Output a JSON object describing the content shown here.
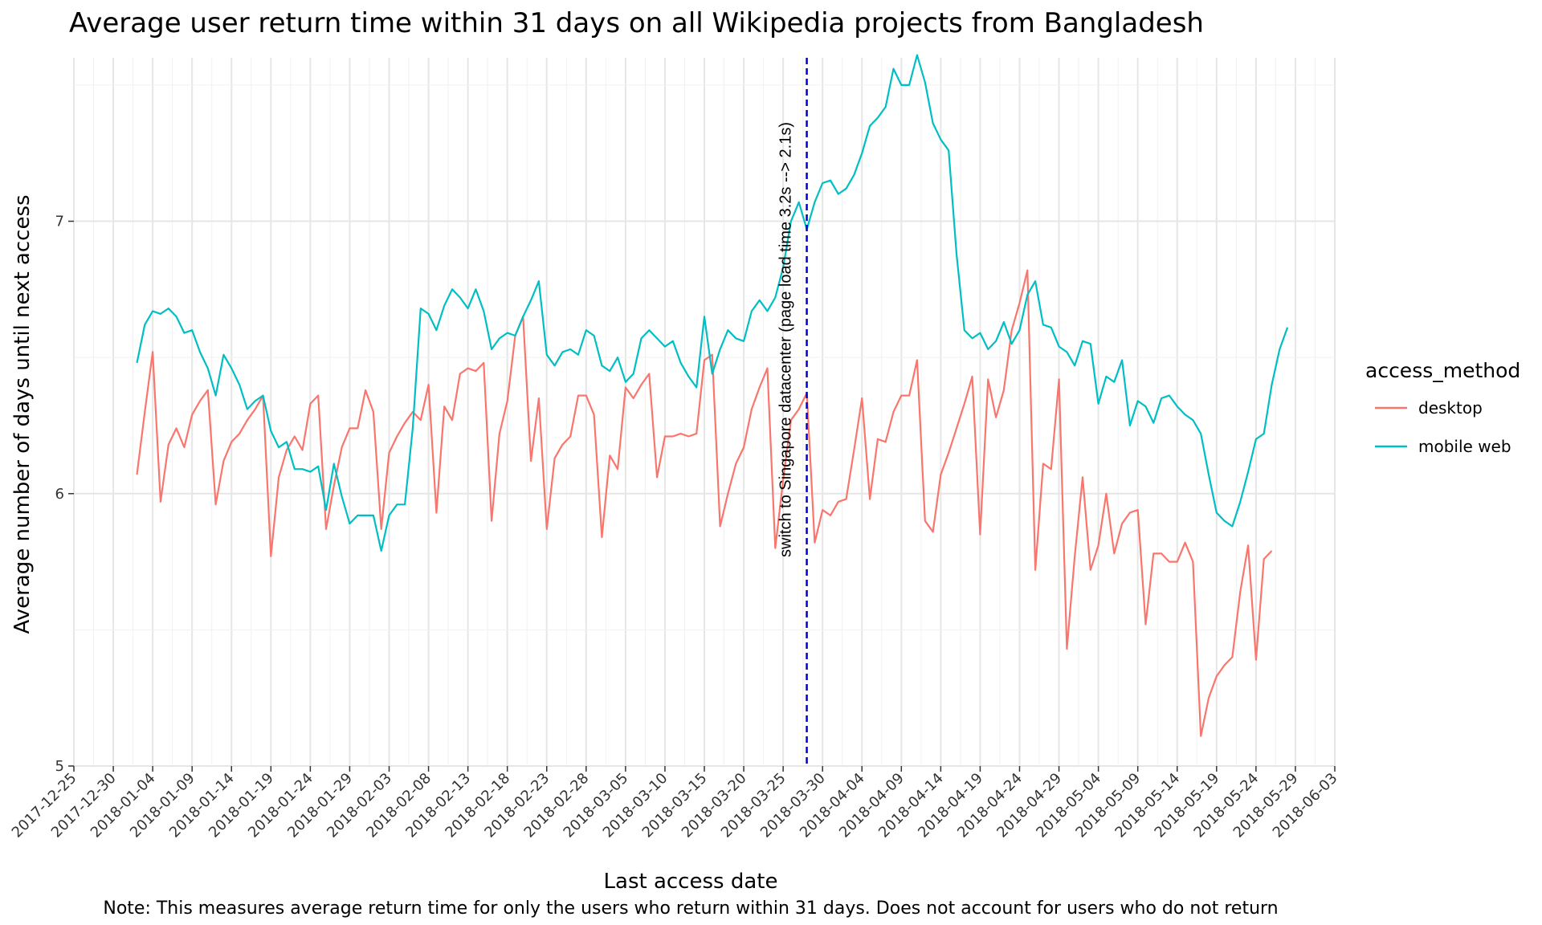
{
  "chart_data": {
    "type": "line",
    "title": "Average user return time within 31 days on all Wikipedia projects from Bangladesh",
    "xlabel": "Last access date",
    "ylabel": "Average number of days until next access",
    "caption": "Note: This measures average return time for only the users who return within 31 days. Does not account for users who do not return",
    "x_start": "2018-01-02",
    "xlim": [
      "2017-12-25",
      "2018-06-03"
    ],
    "ylim": [
      5,
      7.6
    ],
    "x_ticks": [
      "2017-12-25",
      "2017-12-30",
      "2018-01-04",
      "2018-01-09",
      "2018-01-14",
      "2018-01-19",
      "2018-01-24",
      "2018-01-29",
      "2018-02-03",
      "2018-02-08",
      "2018-02-13",
      "2018-02-18",
      "2018-02-23",
      "2018-02-28",
      "2018-03-05",
      "2018-03-10",
      "2018-03-15",
      "2018-03-20",
      "2018-03-25",
      "2018-03-30",
      "2018-04-04",
      "2018-04-09",
      "2018-04-14",
      "2018-04-19",
      "2018-04-24",
      "2018-04-29",
      "2018-05-04",
      "2018-05-09",
      "2018-05-14",
      "2018-05-19",
      "2018-05-24",
      "2018-05-29",
      "2018-06-03"
    ],
    "y_ticks": [
      "5",
      "6",
      "7"
    ],
    "y_tick_values": [
      5,
      6,
      7
    ],
    "grid": true,
    "legend": {
      "title": "access_method",
      "position": "right",
      "entries": [
        {
          "label": "desktop",
          "color": "#F8766D"
        },
        {
          "label": "mobile web",
          "color": "#00BFC4"
        }
      ]
    },
    "annotation": {
      "date": "2018-03-28",
      "text": "switch to Singapore datacenter (page load time 3.2s --> 2.1s)",
      "line_color": "#0000CC"
    },
    "series": [
      {
        "name": "desktop",
        "color": "#F8766D",
        "values": [
          6.07,
          6.3,
          6.52,
          5.97,
          6.18,
          6.24,
          6.17,
          6.29,
          6.34,
          6.38,
          5.96,
          6.12,
          6.19,
          6.22,
          6.27,
          6.31,
          6.36,
          5.77,
          6.06,
          6.16,
          6.21,
          6.16,
          6.33,
          6.36,
          5.87,
          6.03,
          6.17,
          6.24,
          6.24,
          6.38,
          6.3,
          5.87,
          6.15,
          6.21,
          6.26,
          6.3,
          6.27,
          6.4,
          5.93,
          6.32,
          6.27,
          6.44,
          6.46,
          6.45,
          6.48,
          5.9,
          6.22,
          6.34,
          6.58,
          6.65,
          6.12,
          6.35,
          5.87,
          6.13,
          6.18,
          6.21,
          6.36,
          6.36,
          6.29,
          5.84,
          6.14,
          6.09,
          6.39,
          6.35,
          6.4,
          6.44,
          6.06,
          6.21,
          6.21,
          6.22,
          6.21,
          6.22,
          6.49,
          6.51,
          5.88,
          6.0,
          6.11,
          6.17,
          6.31,
          6.39,
          6.46,
          5.8,
          6.05,
          6.27,
          6.31,
          6.37,
          5.82,
          5.94,
          5.92,
          5.97,
          5.98,
          6.16,
          6.35,
          5.98,
          6.2,
          6.19,
          6.3,
          6.36,
          6.36,
          6.49,
          5.9,
          5.86,
          6.07,
          6.15,
          6.24,
          6.33,
          6.43,
          5.85,
          6.42,
          6.28,
          6.38,
          6.6,
          6.7,
          6.82,
          5.72,
          6.11,
          6.09,
          6.42,
          5.43,
          5.77,
          6.06,
          5.72,
          5.81,
          6.0,
          5.78,
          5.89,
          5.93,
          5.94,
          5.52,
          5.78,
          5.78,
          5.75,
          5.75,
          5.82,
          5.75,
          5.11,
          5.25,
          5.33,
          5.37,
          5.4,
          5.64,
          5.81,
          5.39,
          5.76,
          5.79
        ]
      },
      {
        "name": "mobile web",
        "color": "#00BFC4",
        "values": [
          6.48,
          6.62,
          6.67,
          6.66,
          6.68,
          6.65,
          6.59,
          6.6,
          6.52,
          6.46,
          6.36,
          6.51,
          6.46,
          6.4,
          6.31,
          6.34,
          6.36,
          6.23,
          6.17,
          6.19,
          6.09,
          6.09,
          6.08,
          6.1,
          5.94,
          6.11,
          5.99,
          5.89,
          5.92,
          5.92,
          5.92,
          5.79,
          5.92,
          5.96,
          5.96,
          6.24,
          6.68,
          6.66,
          6.6,
          6.69,
          6.75,
          6.72,
          6.68,
          6.75,
          6.67,
          6.53,
          6.57,
          6.59,
          6.58,
          6.65,
          6.71,
          6.78,
          6.51,
          6.47,
          6.52,
          6.53,
          6.51,
          6.6,
          6.58,
          6.47,
          6.45,
          6.5,
          6.41,
          6.44,
          6.57,
          6.6,
          6.57,
          6.54,
          6.56,
          6.48,
          6.43,
          6.39,
          6.65,
          6.44,
          6.53,
          6.6,
          6.57,
          6.56,
          6.67,
          6.71,
          6.67,
          6.72,
          6.83,
          7.0,
          7.07,
          6.97,
          7.07,
          7.14,
          7.15,
          7.1,
          7.12,
          7.17,
          7.25,
          7.35,
          7.38,
          7.42,
          7.56,
          7.5,
          7.5,
          7.61,
          7.51,
          7.36,
          7.3,
          7.26,
          6.88,
          6.6,
          6.57,
          6.59,
          6.53,
          6.56,
          6.63,
          6.55,
          6.6,
          6.73,
          6.78,
          6.62,
          6.61,
          6.54,
          6.52,
          6.47,
          6.56,
          6.55,
          6.33,
          6.43,
          6.41,
          6.49,
          6.25,
          6.34,
          6.32,
          6.26,
          6.35,
          6.36,
          6.32,
          6.29,
          6.27,
          6.22,
          6.07,
          5.93,
          5.9,
          5.88,
          5.97,
          6.08,
          6.2,
          6.22,
          6.4,
          6.53,
          6.61
        ]
      }
    ]
  }
}
